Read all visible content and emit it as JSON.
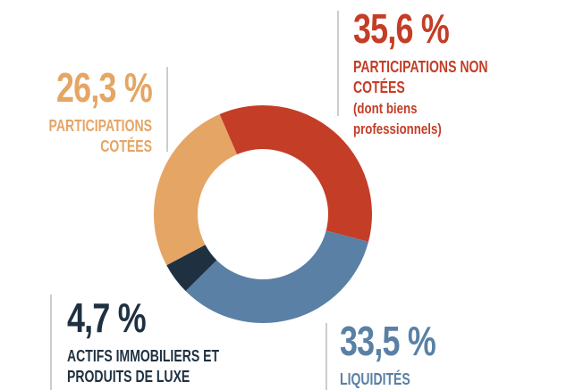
{
  "chart_data": {
    "type": "donut",
    "categories": [
      "PARTICIPATIONS NON COTÉES",
      "LIQUIDITÉS",
      "ACTIFS IMMOBILIERS ET PRODUITS DE LUXE",
      "PARTICIPATIONS COTÉES"
    ],
    "values": [
      35.6,
      33.5,
      4.7,
      26.3
    ],
    "value_labels": [
      "35,6 %",
      "33,5 %",
      "4,7 %",
      "26,3 %"
    ],
    "colors": [
      "#c43d27",
      "#5a80a5",
      "#1f3141",
      "#e5a564"
    ],
    "note": "(dont biens professionnels)"
  }
}
